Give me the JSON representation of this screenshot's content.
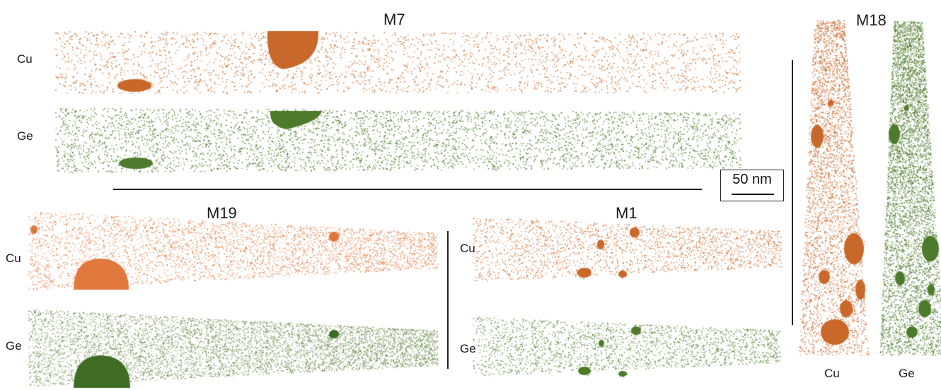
{
  "figure": {
    "panels": [
      {
        "id": "M7",
        "title": "M7",
        "rows": [
          {
            "element": "Cu",
            "color": "#c8682a",
            "shape": "rect"
          },
          {
            "element": "Ge",
            "color": "#4e7a2c",
            "shape": "rect"
          }
        ]
      },
      {
        "id": "M18",
        "title": "M18",
        "columns": [
          {
            "element": "Cu",
            "color": "#c8682a",
            "shape": "vertical"
          },
          {
            "element": "Ge",
            "color": "#4e7a2c",
            "shape": "vertical"
          }
        ]
      },
      {
        "id": "M19",
        "title": "M19",
        "rows": [
          {
            "element": "Cu",
            "color": "#e0783e",
            "shape": "taper"
          },
          {
            "element": "Ge",
            "color": "#6a8a4c",
            "shape": "taper"
          }
        ]
      },
      {
        "id": "M1",
        "title": "M1",
        "rows": [
          {
            "element": "Cu",
            "color": "#c8682a",
            "shape": "taper"
          },
          {
            "element": "Ge",
            "color": "#4e7a2c",
            "shape": "taper"
          }
        ]
      }
    ],
    "scale_bar": {
      "label": "50 nm"
    }
  }
}
